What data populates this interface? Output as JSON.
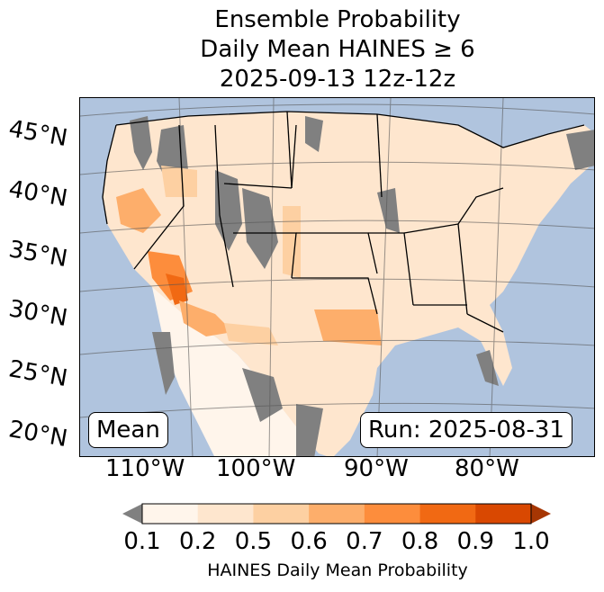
{
  "title": {
    "line1": "Ensemble Probability",
    "line2": "Daily Mean HAINES ≥ 6",
    "line3": "2025-09-13 12z-12z"
  },
  "map": {
    "latitude_labels": [
      "45°N",
      "40°N",
      "35°N",
      "30°N",
      "25°N",
      "20°N"
    ],
    "longitude_labels": [
      "110°W",
      "100°W",
      "90°W",
      "80°W"
    ],
    "stat_label": "Mean",
    "run_label": "Run: 2025-08-31",
    "colors": {
      "ocean": "#b0c4de",
      "below_min": "#808080",
      "boundaries": "#000000"
    }
  },
  "colorbar": {
    "ticks": [
      "0.1",
      "0.2",
      "0.5",
      "0.6",
      "0.7",
      "0.8",
      "0.9",
      "1.0"
    ],
    "colors": [
      "#fff5eb",
      "#fee6ce",
      "#fdd0a2",
      "#fdae6b",
      "#fd8d3c",
      "#f16913",
      "#d94801"
    ],
    "under_color": "#808080",
    "over_color": "#a63603",
    "label": "HAINES Daily Mean Probability"
  }
}
